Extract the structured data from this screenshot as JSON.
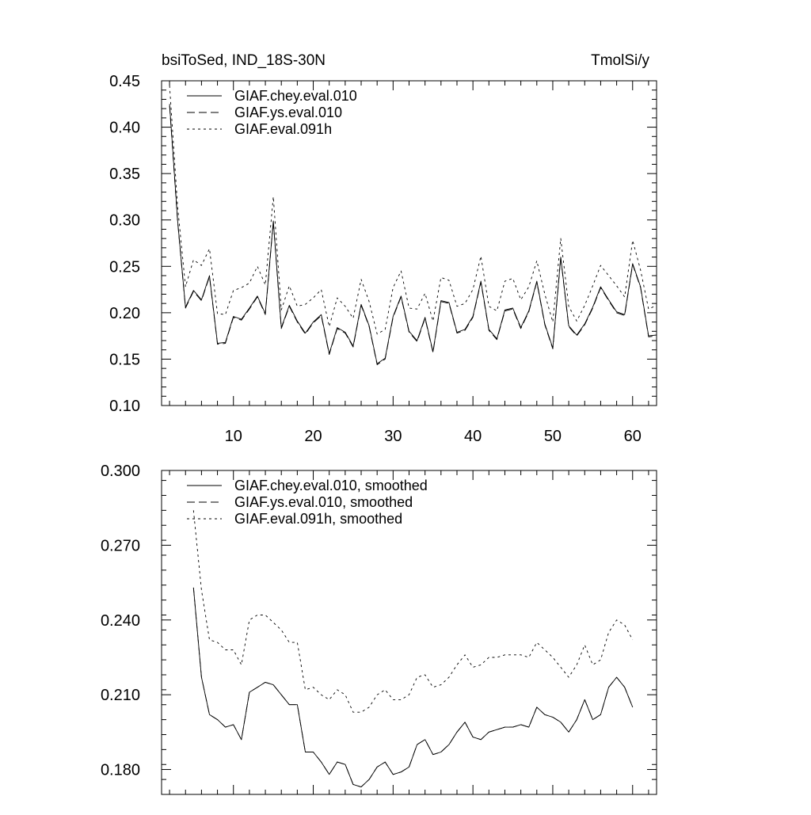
{
  "chart_data": [
    {
      "type": "line",
      "title": "bsiToSed, IND_18S-30N",
      "title_right": "TmolSi/y",
      "xlim": [
        1,
        63
      ],
      "ylim": [
        0.1,
        0.45
      ],
      "x_ticks": [
        10,
        20,
        30,
        40,
        50,
        60
      ],
      "x_tick_labels": [
        "10",
        "20",
        "30",
        "40",
        "50",
        "60"
      ],
      "y_ticks": [
        0.1,
        0.15,
        0.2,
        0.25,
        0.3,
        0.35,
        0.4,
        0.45
      ],
      "y_tick_labels": [
        "0.10",
        "0.15",
        "0.20",
        "0.25",
        "0.30",
        "0.35",
        "0.40",
        "0.45"
      ],
      "grid": false,
      "legend_position": "top-left",
      "series": [
        {
          "name": "GIAF.chey.eval.010",
          "dash": "solid",
          "x": [
            2,
            3,
            4,
            5,
            6,
            7,
            8,
            9,
            10,
            11,
            12,
            13,
            14,
            15,
            16,
            17,
            18,
            19,
            20,
            21,
            22,
            23,
            24,
            25,
            26,
            27,
            28,
            29,
            30,
            31,
            32,
            33,
            34,
            35,
            36,
            37,
            38,
            39,
            40,
            41,
            42,
            43,
            44,
            45,
            46,
            47,
            48,
            49,
            50,
            51,
            52,
            53,
            54,
            55,
            56,
            57,
            58,
            59,
            60,
            61,
            62,
            63
          ],
          "values": [
            0.425,
            0.3,
            0.206,
            0.224,
            0.214,
            0.24,
            0.167,
            0.168,
            0.196,
            0.193,
            0.205,
            0.218,
            0.199,
            0.299,
            0.184,
            0.208,
            0.191,
            0.178,
            0.19,
            0.198,
            0.156,
            0.184,
            0.179,
            0.164,
            0.209,
            0.186,
            0.145,
            0.151,
            0.196,
            0.218,
            0.18,
            0.17,
            0.195,
            0.158,
            0.213,
            0.211,
            0.179,
            0.182,
            0.196,
            0.234,
            0.182,
            0.172,
            0.203,
            0.205,
            0.184,
            0.202,
            0.234,
            0.188,
            0.162,
            0.26,
            0.186,
            0.176,
            0.188,
            0.206,
            0.228,
            0.214,
            0.201,
            0.198,
            0.253,
            0.228,
            0.175,
            0.176
          ]
        },
        {
          "name": "GIAF.ys.eval.010",
          "dash": "long-dash",
          "x": [
            2,
            3,
            4,
            5,
            6,
            7,
            8,
            9,
            10,
            11,
            12,
            13,
            14,
            15,
            16,
            17,
            18,
            19,
            20,
            21,
            22,
            23,
            24,
            25,
            26,
            27,
            28,
            29,
            30,
            31,
            32,
            33,
            34,
            35,
            36,
            37,
            38,
            39,
            40,
            41,
            42,
            43,
            44,
            45,
            46,
            47,
            48,
            49,
            50,
            51,
            52,
            53,
            54,
            55,
            56,
            57,
            58,
            59,
            60,
            61,
            62,
            63
          ],
          "values": [
            0.423,
            0.299,
            0.205,
            0.223,
            0.213,
            0.239,
            0.166,
            0.167,
            0.195,
            0.192,
            0.204,
            0.217,
            0.198,
            0.298,
            0.183,
            0.207,
            0.19,
            0.177,
            0.189,
            0.197,
            0.155,
            0.183,
            0.178,
            0.163,
            0.208,
            0.185,
            0.144,
            0.15,
            0.195,
            0.217,
            0.179,
            0.169,
            0.194,
            0.157,
            0.212,
            0.21,
            0.178,
            0.181,
            0.195,
            0.233,
            0.181,
            0.171,
            0.202,
            0.204,
            0.183,
            0.201,
            0.233,
            0.187,
            0.161,
            0.259,
            0.185,
            0.175,
            0.187,
            0.205,
            0.227,
            0.213,
            0.2,
            0.197,
            0.252,
            0.227,
            0.174,
            0.175
          ]
        },
        {
          "name": "GIAF.eval.091h",
          "dash": "short-dash",
          "x": [
            2,
            3,
            4,
            5,
            6,
            7,
            8,
            9,
            10,
            11,
            12,
            13,
            14,
            15,
            16,
            17,
            18,
            19,
            20,
            21,
            22,
            23,
            24,
            25,
            26,
            27,
            28,
            29,
            30,
            31,
            32,
            33,
            34,
            35,
            36,
            37,
            38,
            39,
            40,
            41,
            42,
            43,
            44,
            45,
            46,
            47,
            48,
            49,
            50,
            51,
            52,
            53,
            54,
            55,
            56,
            57,
            58,
            59,
            60,
            61,
            62,
            63
          ],
          "values": [
            0.445,
            0.315,
            0.228,
            0.257,
            0.251,
            0.269,
            0.199,
            0.198,
            0.224,
            0.227,
            0.232,
            0.25,
            0.23,
            0.325,
            0.203,
            0.229,
            0.207,
            0.209,
            0.216,
            0.225,
            0.185,
            0.216,
            0.207,
            0.194,
            0.236,
            0.212,
            0.177,
            0.182,
            0.227,
            0.245,
            0.205,
            0.204,
            0.221,
            0.191,
            0.238,
            0.235,
            0.207,
            0.21,
            0.225,
            0.261,
            0.207,
            0.202,
            0.234,
            0.237,
            0.214,
            0.228,
            0.256,
            0.22,
            0.19,
            0.28,
            0.207,
            0.191,
            0.208,
            0.229,
            0.251,
            0.24,
            0.229,
            0.217,
            0.278,
            0.246,
            0.204,
            0.208
          ]
        }
      ]
    },
    {
      "type": "line",
      "xlim": [
        1,
        63
      ],
      "ylim": [
        0.17,
        0.3
      ],
      "x_ticks": [
        10,
        20,
        30,
        40,
        50,
        60
      ],
      "y_ticks": [
        0.18,
        0.21,
        0.24,
        0.27,
        0.3
      ],
      "y_tick_labels": [
        "0.180",
        "0.210",
        "0.240",
        "0.270",
        "0.300"
      ],
      "grid": false,
      "legend_position": "top-left",
      "series": [
        {
          "name": "GIAF.chey.eval.010, smoothed",
          "dash": "solid",
          "x": [
            5,
            6,
            7,
            8,
            9,
            10,
            11,
            12,
            13,
            14,
            15,
            16,
            17,
            18,
            19,
            20,
            21,
            22,
            23,
            24,
            25,
            26,
            27,
            28,
            29,
            30,
            31,
            32,
            33,
            34,
            35,
            36,
            37,
            38,
            39,
            40,
            41,
            42,
            43,
            44,
            45,
            46,
            47,
            48,
            49,
            50,
            51,
            52,
            53,
            54,
            55,
            56,
            57,
            58,
            59,
            60
          ],
          "values": [
            0.253,
            0.217,
            0.202,
            0.2,
            0.197,
            0.198,
            0.192,
            0.211,
            0.213,
            0.215,
            0.214,
            0.21,
            0.206,
            0.206,
            0.187,
            0.187,
            0.183,
            0.178,
            0.183,
            0.182,
            0.174,
            0.173,
            0.176,
            0.181,
            0.183,
            0.178,
            0.179,
            0.181,
            0.19,
            0.192,
            0.186,
            0.187,
            0.19,
            0.195,
            0.199,
            0.193,
            0.192,
            0.195,
            0.196,
            0.197,
            0.197,
            0.198,
            0.197,
            0.205,
            0.202,
            0.201,
            0.199,
            0.195,
            0.2,
            0.208,
            0.2,
            0.202,
            0.213,
            0.217,
            0.213,
            0.205
          ]
        },
        {
          "name": "GIAF.ys.eval.010, smoothed",
          "dash": "long-dash",
          "x": [
            5,
            6,
            7,
            8,
            9,
            10,
            11,
            12,
            13,
            14,
            15,
            16,
            17,
            18,
            19,
            20,
            21,
            22,
            23,
            24,
            25,
            26,
            27,
            28,
            29,
            30,
            31,
            32,
            33,
            34,
            35,
            36,
            37,
            38,
            39,
            40,
            41,
            42,
            43,
            44,
            45,
            46,
            47,
            48,
            49,
            50,
            51,
            52,
            53,
            54,
            55,
            56,
            57,
            58,
            59,
            60
          ],
          "values": [
            0.253,
            0.217,
            0.202,
            0.2,
            0.197,
            0.198,
            0.192,
            0.211,
            0.213,
            0.215,
            0.214,
            0.21,
            0.206,
            0.206,
            0.187,
            0.187,
            0.183,
            0.178,
            0.183,
            0.182,
            0.174,
            0.173,
            0.176,
            0.181,
            0.183,
            0.178,
            0.179,
            0.181,
            0.19,
            0.192,
            0.186,
            0.187,
            0.19,
            0.195,
            0.199,
            0.193,
            0.192,
            0.195,
            0.196,
            0.197,
            0.197,
            0.198,
            0.197,
            0.205,
            0.202,
            0.201,
            0.199,
            0.195,
            0.2,
            0.208,
            0.2,
            0.202,
            0.213,
            0.217,
            0.213,
            0.205
          ]
        },
        {
          "name": "GIAF.eval.091h, smoothed",
          "dash": "short-dash",
          "x": [
            5,
            6,
            7,
            8,
            9,
            10,
            11,
            12,
            13,
            14,
            15,
            16,
            17,
            18,
            19,
            20,
            21,
            22,
            23,
            24,
            25,
            26,
            27,
            28,
            29,
            30,
            31,
            32,
            33,
            34,
            35,
            36,
            37,
            38,
            39,
            40,
            41,
            42,
            43,
            44,
            45,
            46,
            47,
            48,
            49,
            50,
            51,
            52,
            53,
            54,
            55,
            56,
            57,
            58,
            59,
            60
          ],
          "values": [
            0.284,
            0.252,
            0.232,
            0.231,
            0.228,
            0.228,
            0.222,
            0.24,
            0.242,
            0.242,
            0.239,
            0.236,
            0.231,
            0.231,
            0.212,
            0.213,
            0.21,
            0.208,
            0.212,
            0.21,
            0.203,
            0.203,
            0.205,
            0.21,
            0.212,
            0.208,
            0.208,
            0.21,
            0.217,
            0.218,
            0.213,
            0.214,
            0.217,
            0.222,
            0.226,
            0.221,
            0.222,
            0.225,
            0.225,
            0.226,
            0.226,
            0.226,
            0.225,
            0.231,
            0.228,
            0.225,
            0.221,
            0.217,
            0.222,
            0.23,
            0.222,
            0.224,
            0.235,
            0.24,
            0.238,
            0.232
          ]
        }
      ]
    }
  ]
}
